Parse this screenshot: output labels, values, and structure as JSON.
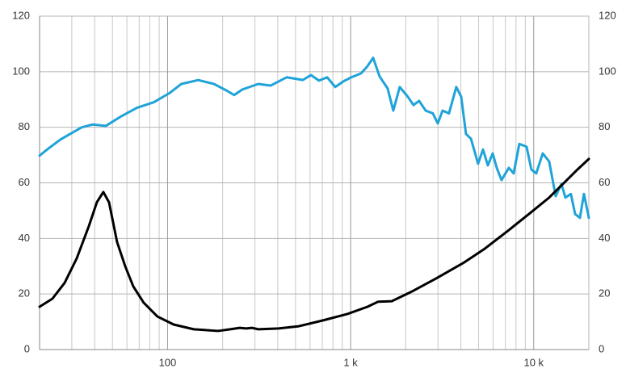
{
  "chart_data": {
    "type": "line",
    "xscale": "log",
    "xlim": [
      20,
      20000
    ],
    "xticks": [
      100,
      {
        "value": 1000,
        "label": "1 k"
      },
      {
        "value": 10000,
        "label": "10 k"
      }
    ],
    "xgrid": [
      30,
      40,
      50,
      60,
      70,
      80,
      90,
      200,
      300,
      400,
      500,
      600,
      700,
      800,
      900,
      2000,
      3000,
      4000,
      5000,
      6000,
      7000,
      8000,
      9000
    ],
    "ylim": [
      0,
      120
    ],
    "yticks": [
      0,
      20,
      40,
      60,
      80,
      100,
      120
    ],
    "y2lim": [
      0,
      120
    ],
    "y2ticks": [
      0,
      20,
      40,
      60,
      80,
      100,
      120
    ],
    "grid": true,
    "series": [
      {
        "color": "#1fa3d8",
        "x": [
          20,
          22,
          26,
          34,
          39,
          46,
          56,
          68,
          84,
          103,
          119,
          147,
          179,
          209,
          231,
          256,
          313,
          365,
          448,
          548,
          607,
          672,
          744,
          824,
          912,
          1009,
          1140,
          1236,
          1327,
          1439,
          1592,
          1710,
          1854,
          2052,
          2204,
          2366,
          2570,
          2812,
          2992,
          3178,
          3444,
          3776,
          4016,
          4266,
          4540,
          4966,
          5284,
          5616,
          5970,
          6280,
          6670,
          7310,
          7770,
          8340,
          9140,
          9710,
          10320,
          11200,
          12140,
          13180,
          14160,
          14900,
          15960,
          16820,
          17880,
          18800,
          20000
        ],
        "values": [
          69.8,
          72,
          75.6,
          80,
          81,
          80.5,
          84,
          87,
          89,
          92.4,
          95.6,
          97,
          95.6,
          93.3,
          91.6,
          93.6,
          95.6,
          95,
          98,
          97,
          98.8,
          96.8,
          98,
          94.5,
          96.5,
          98,
          99.4,
          102,
          105,
          98.3,
          94,
          86,
          94.5,
          91,
          88,
          89.5,
          86,
          85,
          81.4,
          86,
          85,
          94.5,
          91,
          77.6,
          75.9,
          66.9,
          72,
          66.3,
          70.6,
          65.4,
          61,
          65.4,
          63.4,
          74,
          73,
          64.8,
          63.4,
          70.6,
          67.7,
          55.2,
          59.6,
          54.7,
          56,
          48.8,
          47.4,
          56,
          47.4
        ]
      },
      {
        "color": "#000000",
        "x": [
          20,
          23.5,
          27.4,
          31.9,
          37.2,
          41.1,
          44.6,
          47.9,
          53,
          58.7,
          65,
          74,
          88,
          108,
          139,
          189,
          220,
          248,
          269,
          289,
          313,
          404,
          521,
          706,
          960,
          1236,
          1410,
          1676,
          2162,
          2930,
          4180,
          5400,
          7310,
          9420,
          12140,
          14900,
          17340,
          20000
        ],
        "values": [
          15.4,
          18.3,
          24,
          32.8,
          44.5,
          53,
          56.7,
          53,
          38.7,
          30,
          22.7,
          16.9,
          11.9,
          9,
          7.3,
          6.7,
          7.3,
          7.8,
          7.6,
          7.8,
          7.3,
          7.6,
          8.4,
          10.5,
          12.8,
          15.4,
          17.2,
          17.4,
          20.9,
          25.6,
          31.4,
          36.3,
          43,
          48.8,
          54.7,
          60.5,
          64.8,
          68.6
        ]
      }
    ]
  }
}
